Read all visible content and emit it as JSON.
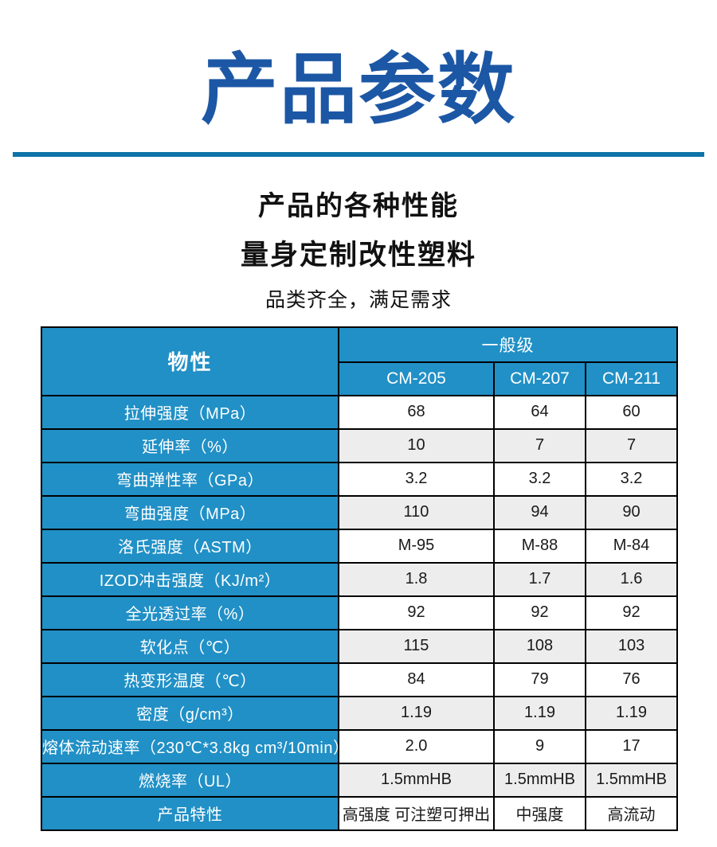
{
  "page": {
    "title": "产品参数",
    "subtitle_line1": "产品的各种性能",
    "subtitle_line2": "量身定制改性塑料",
    "subtitle_line3": "品类齐全，满足需求"
  },
  "colors": {
    "title_blue": "#1c57a5",
    "divider_blue": "#0e74a8",
    "table_header_blue": "#2190c6",
    "row_alt_gray": "#ededed",
    "border": "#000000"
  },
  "table": {
    "property_header": "物性",
    "grade_group_header": "一般级",
    "columns": [
      "CM-205",
      "CM-207",
      "CM-211"
    ],
    "rows": [
      {
        "label": "拉伸强度（MPa）",
        "values": [
          "68",
          "64",
          "60"
        ]
      },
      {
        "label": "延伸率（%）",
        "values": [
          "10",
          "7",
          "7"
        ]
      },
      {
        "label": "弯曲弹性率（GPa）",
        "values": [
          "3.2",
          "3.2",
          "3.2"
        ]
      },
      {
        "label": "弯曲强度（MPa）",
        "values": [
          "110",
          "94",
          "90"
        ]
      },
      {
        "label": "洛氏强度（ASTM）",
        "values": [
          "M-95",
          "M-88",
          "M-84"
        ]
      },
      {
        "label": "IZOD冲击强度（KJ/m²）",
        "values": [
          "1.8",
          "1.7",
          "1.6"
        ]
      },
      {
        "label": "全光透过率（%）",
        "values": [
          "92",
          "92",
          "92"
        ]
      },
      {
        "label": "软化点（℃）",
        "values": [
          "115",
          "108",
          "103"
        ]
      },
      {
        "label": "热变形温度（℃）",
        "values": [
          "84",
          "79",
          "76"
        ]
      },
      {
        "label": "密度（g/cm³）",
        "values": [
          "1.19",
          "1.19",
          "1.19"
        ]
      },
      {
        "label": "熔体流动速率（230℃*3.8kg cm³/10min）",
        "values": [
          "2.0",
          "9",
          "17"
        ]
      },
      {
        "label": "燃烧率（UL）",
        "values": [
          "1.5mmHB",
          "1.5mmHB",
          "1.5mmHB"
        ]
      },
      {
        "label": "产品特性",
        "values": [
          "高强度 可注塑可押出",
          "中强度",
          "高流动"
        ]
      }
    ]
  }
}
